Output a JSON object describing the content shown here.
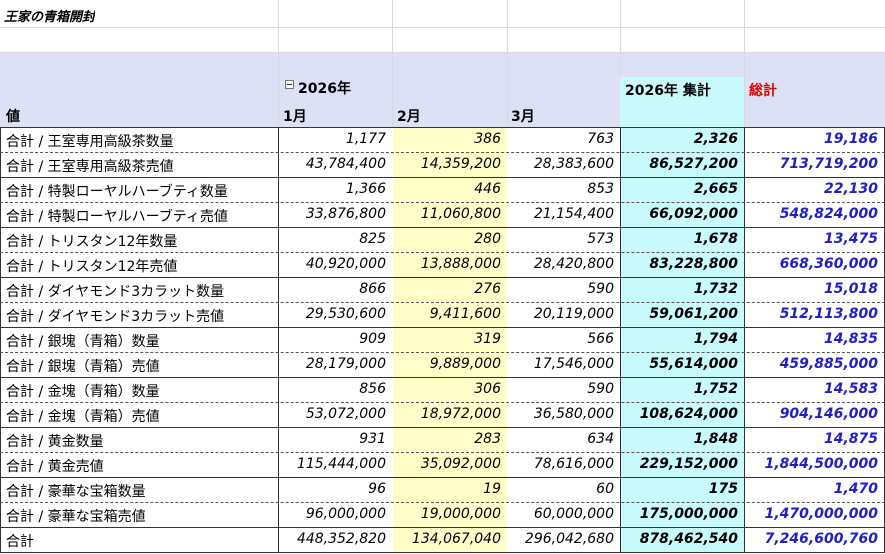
{
  "title": "王家の青箱開封",
  "header": {
    "value_label": "値",
    "year_label": "2026年",
    "months": [
      "1月",
      "2月",
      "3月"
    ],
    "year_total_label": "2026年 集計",
    "grand_total_label": "総計",
    "grand_total_color": "#e00000",
    "collapse_icon": "minus-box-icon"
  },
  "rows": [
    {
      "label": "合計 / 王室専用高級茶数量",
      "m1": "1,177",
      "m2": "386",
      "m3": "763",
      "year": "2,326",
      "total": "19,186"
    },
    {
      "label": "合計 / 王室専用高級茶売値",
      "m1": "43,784,400",
      "m2": "14,359,200",
      "m3": "28,383,600",
      "year": "86,527,200",
      "total": "713,719,200"
    },
    {
      "label": "合計 / 特製ローヤルハーブティ数量",
      "m1": "1,366",
      "m2": "446",
      "m3": "853",
      "year": "2,665",
      "total": "22,130"
    },
    {
      "label": "合計 / 特製ローヤルハーブティ売値",
      "m1": "33,876,800",
      "m2": "11,060,800",
      "m3": "21,154,400",
      "year": "66,092,000",
      "total": "548,824,000"
    },
    {
      "label": "合計 / トリスタン12年数量",
      "m1": "825",
      "m2": "280",
      "m3": "573",
      "year": "1,678",
      "total": "13,475"
    },
    {
      "label": "合計 / トリスタン12年売値",
      "m1": "40,920,000",
      "m2": "13,888,000",
      "m3": "28,420,800",
      "year": "83,228,800",
      "total": "668,360,000"
    },
    {
      "label": "合計 / ダイヤモンド3カラット数量",
      "m1": "866",
      "m2": "276",
      "m3": "590",
      "year": "1,732",
      "total": "15,018"
    },
    {
      "label": "合計 / ダイヤモンド3カラット売値",
      "m1": "29,530,600",
      "m2": "9,411,600",
      "m3": "20,119,000",
      "year": "59,061,200",
      "total": "512,113,800"
    },
    {
      "label": "合計 / 銀塊（青箱）数量",
      "m1": "909",
      "m2": "319",
      "m3": "566",
      "year": "1,794",
      "total": "14,835"
    },
    {
      "label": "合計 / 銀塊（青箱）売値",
      "m1": "28,179,000",
      "m2": "9,889,000",
      "m3": "17,546,000",
      "year": "55,614,000",
      "total": "459,885,000"
    },
    {
      "label": "合計 / 金塊（青箱）数量",
      "m1": "856",
      "m2": "306",
      "m3": "590",
      "year": "1,752",
      "total": "14,583"
    },
    {
      "label": "合計 / 金塊（青箱）売値",
      "m1": "53,072,000",
      "m2": "18,972,000",
      "m3": "36,580,000",
      "year": "108,624,000",
      "total": "904,146,000"
    },
    {
      "label": "合計 / 黄金数量",
      "m1": "931",
      "m2": "283",
      "m3": "634",
      "year": "1,848",
      "total": "14,875"
    },
    {
      "label": "合計 / 黄金売値",
      "m1": "115,444,000",
      "m2": "35,092,000",
      "m3": "78,616,000",
      "year": "229,152,000",
      "total": "1,844,500,000"
    },
    {
      "label": "合計 / 豪華な宝箱数量",
      "m1": "96",
      "m2": "19",
      "m3": "60",
      "year": "175",
      "total": "1,470"
    },
    {
      "label": "合計 / 豪華な宝箱売値",
      "m1": "96,000,000",
      "m2": "19,000,000",
      "m3": "60,000,000",
      "year": "175,000,000",
      "total": "1,470,000,000"
    },
    {
      "label": "合計",
      "m1": "448,352,820",
      "m2": "134,067,040",
      "m3": "296,042,680",
      "year": "878,462,540",
      "total": "7,246,600,760"
    }
  ],
  "colors": {
    "header_band": "#dce1f5",
    "feb_column": "#fffec8",
    "year_total_column": "#c8fafc",
    "grand_total_text": "#1f1fc8"
  }
}
